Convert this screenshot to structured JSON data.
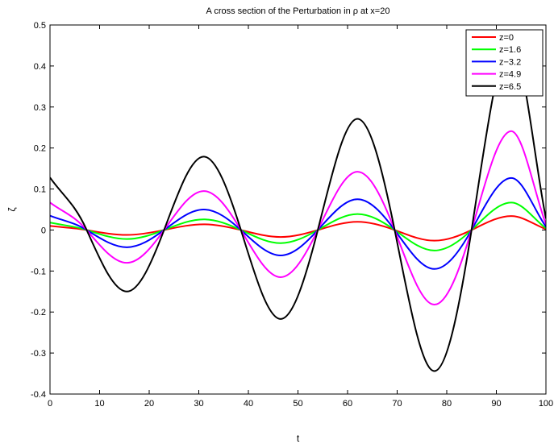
{
  "chart_data": {
    "type": "line",
    "title": "A cross section of the Perturbation in ρ at x=20",
    "xlabel": "t",
    "ylabel": "ζ",
    "xlim": [
      0,
      100
    ],
    "ylim": [
      -0.4,
      0.5
    ],
    "xticks": [
      "0",
      "10",
      "20",
      "30",
      "40",
      "50",
      "60",
      "70",
      "80",
      "90",
      "100"
    ],
    "yticks": [
      "-0.4",
      "-0.3",
      "-0.2",
      "-0.1",
      "0",
      "0.1",
      "0.2",
      "0.3",
      "0.4",
      "0.5"
    ],
    "grid": false,
    "legend_position": "top-right",
    "x": [
      0,
      7.4,
      15.5,
      23,
      31,
      38.5,
      46.5,
      54,
      62,
      69.5,
      77.5,
      85,
      93,
      100
    ],
    "series": [
      {
        "name": "z=0",
        "color": "#ff0000",
        "values": [
          0.01,
          0,
          -0.012,
          0,
          0.014,
          0,
          -0.017,
          0,
          0.02,
          0,
          -0.026,
          0,
          0.034,
          0.002
        ]
      },
      {
        "name": "z=1.6",
        "color": "#00ff00",
        "values": [
          0.018,
          0,
          -0.022,
          0,
          0.026,
          0,
          -0.032,
          0,
          0.039,
          0,
          -0.05,
          0,
          0.067,
          0.004
        ]
      },
      {
        "name": "z−3.2",
        "color": "#0000ff",
        "values": [
          0.035,
          0,
          -0.042,
          0,
          0.05,
          0,
          -0.062,
          0,
          0.075,
          0,
          -0.095,
          0,
          0.127,
          0.008
        ]
      },
      {
        "name": "z=4.9",
        "color": "#ff00ff",
        "values": [
          0.067,
          0,
          -0.08,
          0,
          0.095,
          0,
          -0.115,
          0,
          0.142,
          0,
          -0.182,
          0,
          0.241,
          0.014
        ]
      },
      {
        "name": "z=6.5",
        "color": "#000000",
        "values": [
          0.128,
          0,
          -0.15,
          0,
          0.179,
          0,
          -0.217,
          0,
          0.271,
          0,
          -0.344,
          0,
          0.455,
          0.028
        ]
      }
    ]
  }
}
